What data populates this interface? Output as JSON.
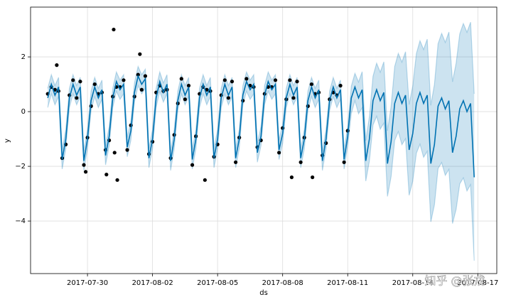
{
  "chart_data": {
    "type": "line",
    "xlabel": "ds",
    "ylabel": "y",
    "watermark": "知乎 @张戎",
    "xlim": [
      -63,
      453
    ],
    "ylim": [
      -5.92,
      3.82
    ],
    "xticks": [
      {
        "value": 0,
        "label": "2017-07-30"
      },
      {
        "value": 72,
        "label": "2017-08-02"
      },
      {
        "value": 144,
        "label": "2017-08-05"
      },
      {
        "value": 216,
        "label": "2017-08-08"
      },
      {
        "value": 288,
        "label": "2017-08-11"
      },
      {
        "value": 360,
        "label": "2017-08-14"
      },
      {
        "value": 432,
        "label": "2017-08-17"
      }
    ],
    "yticks": [
      {
        "value": -4,
        "label": "−4"
      },
      {
        "value": -2,
        "label": "−2"
      },
      0,
      2
    ],
    "grid": true,
    "x": [
      -44,
      -40,
      -36,
      -32,
      -28,
      -24,
      -20,
      -16,
      -12,
      -8,
      -4,
      0,
      4,
      8,
      12,
      16,
      20,
      24,
      28,
      32,
      36,
      40,
      44,
      48,
      52,
      56,
      60,
      64,
      68,
      72,
      76,
      80,
      84,
      88,
      92,
      96,
      100,
      104,
      108,
      112,
      116,
      120,
      124,
      128,
      132,
      136,
      140,
      144,
      148,
      152,
      156,
      160,
      164,
      168,
      172,
      176,
      180,
      184,
      188,
      192,
      196,
      200,
      204,
      208,
      212,
      216,
      220,
      224,
      228,
      232,
      236,
      240,
      244,
      248,
      252,
      256,
      260,
      264,
      268,
      272,
      276,
      280,
      284,
      288,
      292,
      296,
      300,
      304,
      308,
      312,
      316,
      320,
      324,
      328,
      332,
      336,
      340,
      344,
      348,
      352,
      356,
      360,
      364,
      368,
      372,
      376,
      380,
      384,
      388,
      392,
      396,
      400,
      404,
      408,
      412,
      416,
      420,
      424,
      428
    ],
    "forecast": {
      "color": "#0072B2",
      "values": [
        0.5,
        1.0,
        0.6,
        0.9,
        -1.75,
        -1.0,
        0.5,
        1.0,
        0.6,
        0.9,
        -1.8,
        -1.0,
        0.4,
        0.9,
        0.5,
        0.8,
        -1.6,
        -0.9,
        0.5,
        1.1,
        0.8,
        1.0,
        -1.3,
        -0.7,
        0.7,
        1.3,
        1.0,
        1.2,
        -1.7,
        -1.0,
        0.5,
        1.1,
        0.7,
        1.0,
        -1.8,
        -1.0,
        0.4,
        1.0,
        0.6,
        0.9,
        -1.75,
        -1.0,
        0.5,
        1.0,
        0.6,
        0.9,
        -1.7,
        -1.0,
        0.5,
        1.0,
        0.6,
        0.9,
        -1.7,
        -1.0,
        0.6,
        1.1,
        0.8,
        1.0,
        -1.5,
        -0.9,
        0.6,
        1.1,
        0.8,
        1.0,
        -1.4,
        -0.8,
        0.5,
        1.0,
        0.6,
        0.9,
        -1.7,
        -1.0,
        0.4,
        0.9,
        0.5,
        0.8,
        -1.8,
        -1.0,
        0.4,
        0.9,
        0.5,
        0.8,
        -1.75,
        -0.9,
        0.5,
        0.9,
        0.5,
        0.8,
        -1.8,
        -1.0,
        0.4,
        0.8,
        0.4,
        0.7,
        -1.9,
        -1.1,
        0.3,
        0.7,
        0.3,
        0.6,
        -1.4,
        -0.8,
        0.3,
        0.7,
        0.3,
        0.6,
        -1.9,
        -1.2,
        0.2,
        0.5,
        0.1,
        0.4,
        -1.5,
        -0.9,
        0.1,
        0.4,
        0.0,
        0.3,
        -2.4
      ]
    },
    "interval": {
      "color": "#0072B2",
      "lower": [
        0.15,
        0.65,
        0.25,
        0.55,
        -2.1,
        -1.35,
        0.15,
        0.65,
        0.25,
        0.55,
        -2.15,
        -1.35,
        0.05,
        0.55,
        0.15,
        0.45,
        -1.95,
        -1.25,
        0.15,
        0.75,
        0.45,
        0.65,
        -1.65,
        -1.05,
        0.35,
        0.95,
        0.65,
        0.85,
        -2.05,
        -1.35,
        0.15,
        0.75,
        0.35,
        0.65,
        -2.15,
        -1.35,
        0.05,
        0.65,
        0.25,
        0.55,
        -2.1,
        -1.35,
        0.15,
        0.65,
        0.25,
        0.55,
        -2.05,
        -1.35,
        0.15,
        0.65,
        0.25,
        0.55,
        -2.05,
        -1.35,
        0.25,
        0.75,
        0.45,
        0.65,
        -1.85,
        -1.25,
        0.25,
        0.75,
        0.45,
        0.65,
        -1.75,
        -1.15,
        0.15,
        0.65,
        0.25,
        0.55,
        -2.05,
        -1.35,
        0.05,
        0.55,
        0.15,
        0.45,
        -2.15,
        -1.35,
        0.05,
        0.55,
        0.15,
        0.45,
        -2.1,
        -1.25,
        -0.07,
        0.4,
        -0.08,
        0.14,
        -2.54,
        -1.81,
        -0.49,
        -0.17,
        -0.64,
        -0.42,
        -3.1,
        -2.38,
        -1.05,
        -0.73,
        -1.21,
        -0.99,
        -3.06,
        -2.54,
        -1.52,
        -1.19,
        -1.67,
        -1.45,
        -4.03,
        -3.4,
        -2.08,
        -1.86,
        -2.33,
        -2.11,
        -4.09,
        -3.57,
        -2.64,
        -2.42,
        -2.9,
        -2.67,
        -5.45
      ],
      "upper": [
        0.85,
        1.35,
        0.95,
        1.25,
        -1.4,
        -0.65,
        0.85,
        1.35,
        0.95,
        1.25,
        -1.45,
        -0.65,
        0.75,
        1.25,
        0.85,
        1.15,
        -1.25,
        -0.55,
        0.85,
        1.45,
        1.15,
        1.35,
        -0.95,
        -0.35,
        1.05,
        1.65,
        1.35,
        1.55,
        -1.35,
        -0.65,
        0.85,
        1.45,
        1.05,
        1.35,
        -1.45,
        -0.65,
        0.75,
        1.35,
        0.95,
        1.25,
        -1.4,
        -0.65,
        0.85,
        1.35,
        0.95,
        1.25,
        -1.35,
        -0.65,
        0.85,
        1.35,
        0.95,
        1.25,
        -1.35,
        -0.65,
        0.95,
        1.45,
        1.15,
        1.35,
        -1.15,
        -0.55,
        0.95,
        1.45,
        1.15,
        1.35,
        -1.05,
        -0.45,
        0.85,
        1.35,
        0.95,
        1.25,
        -1.35,
        -0.65,
        0.75,
        1.25,
        0.85,
        1.15,
        -1.45,
        -0.65,
        0.75,
        1.25,
        0.85,
        1.15,
        -1.4,
        -0.55,
        0.93,
        1.4,
        1.08,
        1.46,
        -1.06,
        -0.19,
        1.29,
        1.77,
        1.44,
        1.82,
        -0.7,
        0.18,
        1.65,
        2.13,
        1.81,
        2.19,
        0.26,
        0.94,
        2.12,
        2.59,
        2.27,
        2.65,
        0.23,
        1.0,
        2.48,
        2.86,
        2.53,
        2.91,
        1.09,
        1.77,
        2.84,
        3.22,
        2.9,
        3.27,
        0.65
      ]
    },
    "observations": {
      "color": "#000000",
      "x": [
        -44,
        -40,
        -36,
        -32,
        -28,
        -24,
        -20,
        -16,
        -12,
        -8,
        -4,
        0,
        4,
        8,
        12,
        16,
        20,
        24,
        28,
        32,
        36,
        40,
        44,
        48,
        52,
        56,
        60,
        64,
        68,
        72,
        76,
        80,
        84,
        88,
        92,
        96,
        100,
        104,
        108,
        112,
        116,
        120,
        124,
        128,
        132,
        136,
        140,
        144,
        148,
        152,
        156,
        160,
        164,
        168,
        172,
        176,
        180,
        184,
        188,
        192,
        196,
        200,
        204,
        208,
        212,
        216,
        220,
        224,
        228,
        232,
        236,
        240,
        244,
        248,
        252,
        256,
        260,
        264,
        268,
        272,
        276,
        280,
        284,
        288,
        29,
        -2,
        21,
        33,
        30,
        130,
        226,
        249,
        58,
        -34
      ],
      "values": [
        0.65,
        0.9,
        0.8,
        0.75,
        -1.7,
        -1.2,
        0.6,
        1.15,
        0.5,
        1.1,
        -1.95,
        -0.95,
        0.2,
        1.0,
        0.65,
        0.7,
        -1.4,
        -1.05,
        0.55,
        0.9,
        0.9,
        1.15,
        -1.4,
        -0.5,
        0.55,
        1.35,
        0.8,
        1.3,
        -1.55,
        -1.1,
        0.7,
        0.95,
        0.75,
        0.8,
        -1.7,
        -0.85,
        0.3,
        1.2,
        0.45,
        0.95,
        -1.95,
        -0.9,
        0.65,
        0.9,
        0.8,
        0.75,
        -1.65,
        -1.2,
        0.6,
        1.15,
        0.5,
        1.1,
        -1.85,
        -0.95,
        0.4,
        1.2,
        0.95,
        0.9,
        -1.3,
        -1.05,
        0.65,
        0.9,
        0.9,
        1.15,
        -1.5,
        -0.6,
        0.45,
        1.15,
        0.5,
        1.1,
        -1.85,
        -0.95,
        0.2,
        1.0,
        0.65,
        0.7,
        -1.6,
        -1.15,
        0.45,
        0.7,
        0.6,
        0.95,
        -1.85,
        -0.7,
        3.0,
        -2.2,
        -2.3,
        -2.5,
        -1.5,
        -2.5,
        -2.4,
        -2.4,
        2.1,
        1.7
      ]
    }
  }
}
